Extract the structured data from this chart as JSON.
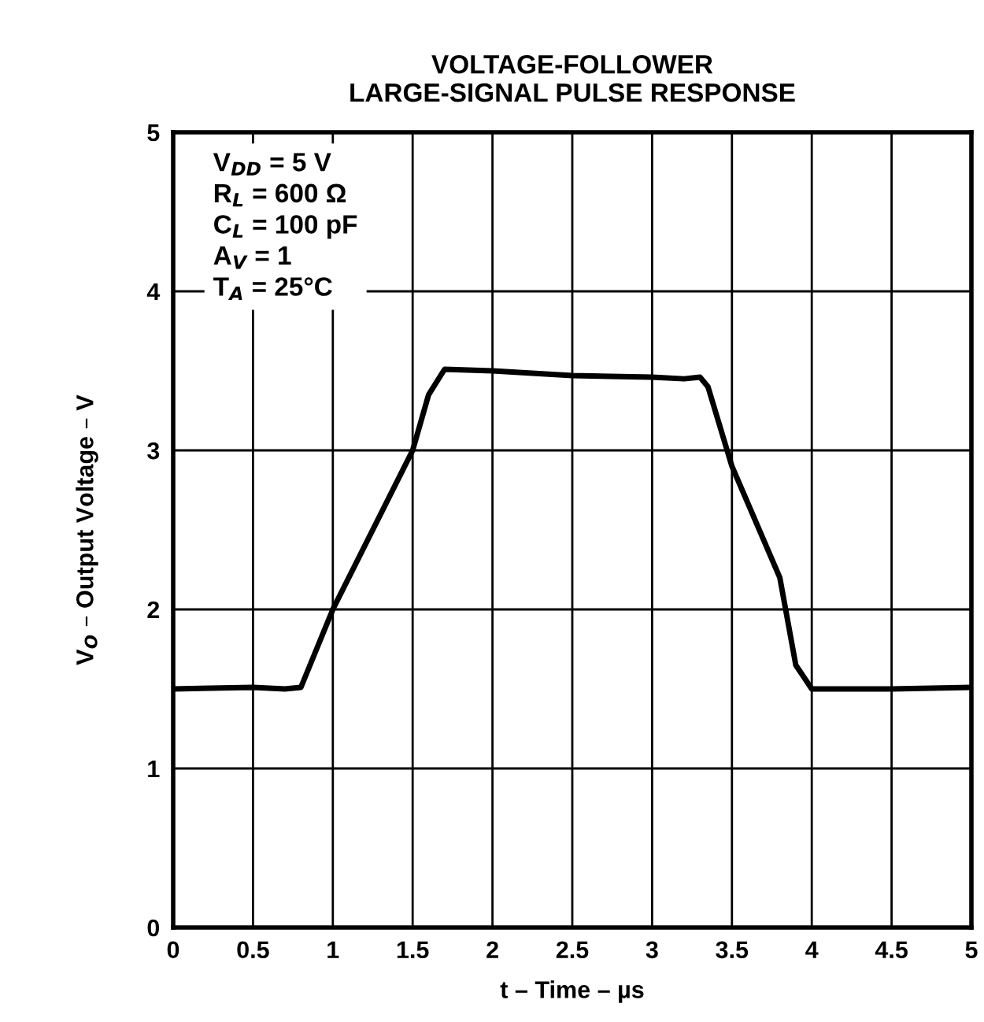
{
  "chart_data": {
    "type": "line",
    "title": "VOLTAGE-FOLLOWER\nLARGE-SIGNAL PULSE RESPONSE",
    "xlabel": "t – Time – µs",
    "ylabel": "V$_{O}$ – Output Voltage – V",
    "annotations": [
      "V$_{DD}$ = 5 V\nR$_{L}$ = 600 Ω\nC$_{L}$ = 100 pF\nA$_{V}$ = 1\nT$_{A}$ = 25°C"
    ],
    "series": [
      {
        "color": "#000000",
        "x": [
          0,
          0.5,
          0.7,
          0.8,
          1.0,
          1.5,
          1.6,
          1.7,
          2,
          2.5,
          3,
          3.2,
          3.3,
          3.35,
          3.5,
          3.8,
          3.9,
          4.0,
          4.5,
          5
        ],
        "values": [
          1.5,
          1.51,
          1.5,
          1.51,
          2.0,
          3.0,
          3.35,
          3.51,
          3.5,
          3.47,
          3.46,
          3.45,
          3.46,
          3.4,
          2.9,
          2.2,
          1.65,
          1.5,
          1.5,
          1.51
        ]
      }
    ],
    "xlim": [
      0,
      5
    ],
    "ylim": [
      0,
      5
    ],
    "xticks": [
      0,
      0.5,
      1,
      1.5,
      2,
      2.5,
      3,
      3.5,
      4,
      4.5,
      5
    ],
    "yticks": [
      0,
      1,
      2,
      3,
      4,
      5
    ],
    "grid": true,
    "line_style": "solid",
    "marker": "none"
  }
}
